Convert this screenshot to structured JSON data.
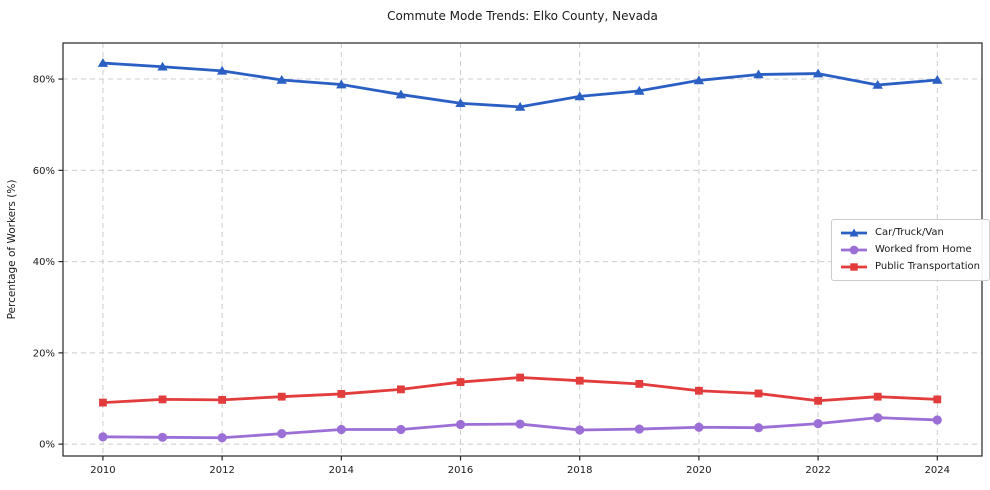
{
  "figure": {
    "background": "#ffffff",
    "text_color": "#1a1a1a",
    "axis_color": "#262626",
    "grid_color": "#cccccc"
  },
  "chart_data": {
    "type": "line",
    "title": "Commute Mode Trends: Elko County, Nevada",
    "xlabel": "",
    "ylabel": "Percentage of Workers (%)",
    "x": [
      2010,
      2011,
      2012,
      2013,
      2014,
      2015,
      2016,
      2017,
      2018,
      2019,
      2020,
      2021,
      2022,
      2023,
      2024
    ],
    "x_ticks": [
      2010,
      2012,
      2014,
      2016,
      2018,
      2020,
      2022,
      2024
    ],
    "x_tick_labels": [
      "2010",
      "2012",
      "2014",
      "2016",
      "2018",
      "2020",
      "2022",
      "2024"
    ],
    "y_ticks": [
      0,
      20,
      40,
      60,
      80
    ],
    "y_tick_labels": [
      "0%",
      "20%",
      "40%",
      "60%",
      "80%"
    ],
    "xlim": [
      2009.33,
      2024.75
    ],
    "ylim": [
      -2.6,
      87.9
    ],
    "grid": true,
    "legend_position": "center-right",
    "series": [
      {
        "name": "Car/Truck/Van",
        "color": "#2a5fc4",
        "marker": "triangle",
        "values": [
          83.5,
          82.7,
          81.8,
          79.8,
          78.8,
          76.6,
          74.7,
          73.9,
          76.2,
          77.4,
          79.7,
          81.0,
          81.2,
          78.7,
          79.8
        ]
      },
      {
        "name": "Worked from Home",
        "color": "#9c6fd6",
        "marker": "circle",
        "values": [
          1.6,
          1.5,
          1.4,
          2.3,
          3.2,
          3.2,
          4.3,
          4.4,
          3.1,
          3.3,
          3.7,
          3.6,
          4.5,
          5.8,
          5.3
        ]
      },
      {
        "name": "Public Transportation",
        "color": "#e23c3c",
        "marker": "square",
        "values": [
          9.1,
          9.8,
          9.7,
          10.4,
          11.0,
          12.0,
          13.6,
          14.6,
          13.9,
          13.2,
          11.7,
          11.1,
          9.5,
          10.4,
          9.8
        ]
      }
    ]
  }
}
